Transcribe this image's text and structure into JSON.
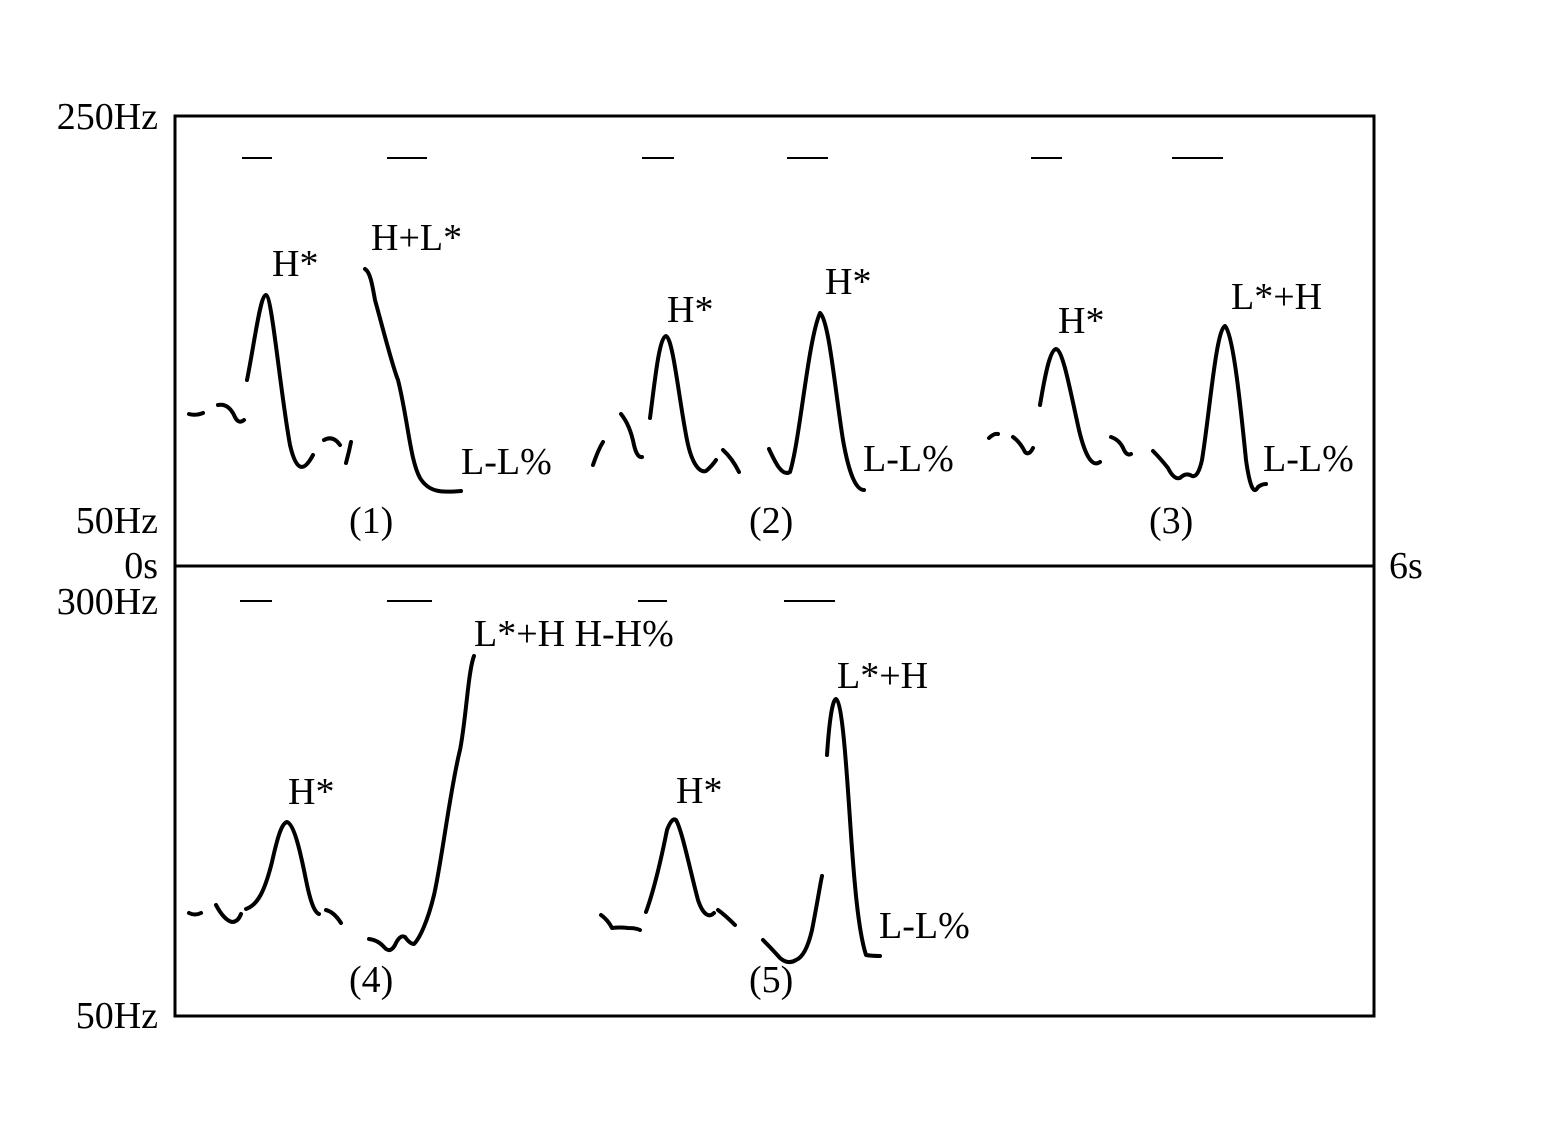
{
  "axes": {
    "top_max": "250Hz",
    "top_min": "50Hz",
    "bottom_max": "300Hz",
    "bottom_min": "50Hz",
    "time_start": "0s",
    "time_end": "6s"
  },
  "examples": [
    {
      "number": "(1)",
      "accent1": "H*",
      "accent2": "H+L*",
      "boundary": "L-L%"
    },
    {
      "number": "(2)",
      "accent1": "H*",
      "accent2": "H*",
      "boundary": "L-L%"
    },
    {
      "number": "(3)",
      "accent1": "H*",
      "accent2": "L*+H",
      "boundary": "L-L%"
    },
    {
      "number": "(4)",
      "accent1": "H*",
      "accent2": "L*+H H-H%"
    },
    {
      "number": "(5)",
      "accent1": "H*",
      "accent2": "L*+H",
      "boundary": "L-L%"
    }
  ]
}
